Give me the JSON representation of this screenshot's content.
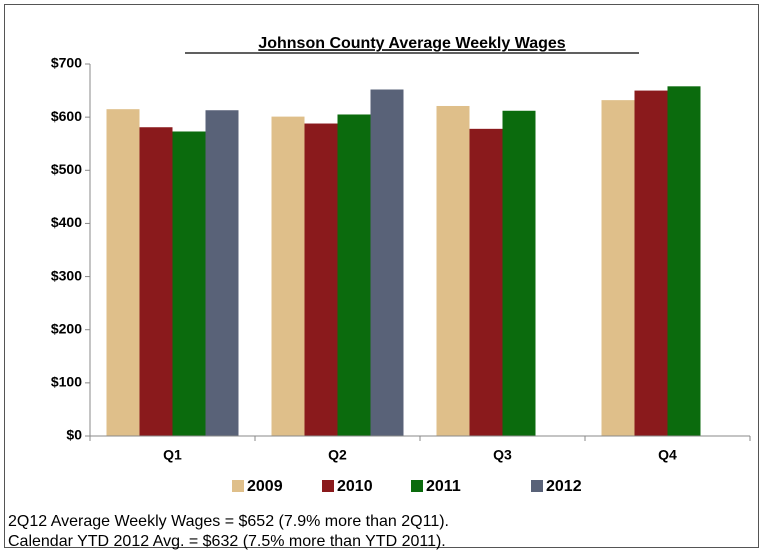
{
  "chart_data": {
    "type": "bar",
    "title": "Johnson County Average Weekly Wages",
    "categories": [
      "Q1",
      "Q2",
      "Q3",
      "Q4"
    ],
    "series": [
      {
        "name": "2009",
        "color": "#dfbf8a",
        "values": [
          615,
          601,
          621,
          632
        ]
      },
      {
        "name": "2010",
        "color": "#8a1a1c",
        "values": [
          581,
          588,
          578,
          650
        ]
      },
      {
        "name": "2011",
        "color": "#0b6b0d",
        "values": [
          573,
          605,
          612,
          658
        ]
      },
      {
        "name": "2012",
        "color": "#596278",
        "values": [
          613,
          652,
          null,
          null
        ]
      }
    ],
    "ylim": [
      0,
      700
    ],
    "yticks": [
      {
        "value": 0,
        "label": "$0"
      },
      {
        "value": 100,
        "label": "$100"
      },
      {
        "value": 200,
        "label": "$200"
      },
      {
        "value": 300,
        "label": "$300"
      },
      {
        "value": 400,
        "label": "$400"
      },
      {
        "value": 500,
        "label": "$500"
      },
      {
        "value": 600,
        "label": "$600"
      },
      {
        "value": 700,
        "label": "$700"
      }
    ],
    "grid": false,
    "legend": "bottom",
    "annotations": [
      "2Q12 Average Weekly Wages = $652 (7.9% more than 2Q11).",
      "Calendar YTD 2012 Avg. = $632 (7.5% more than YTD 2011)."
    ]
  }
}
